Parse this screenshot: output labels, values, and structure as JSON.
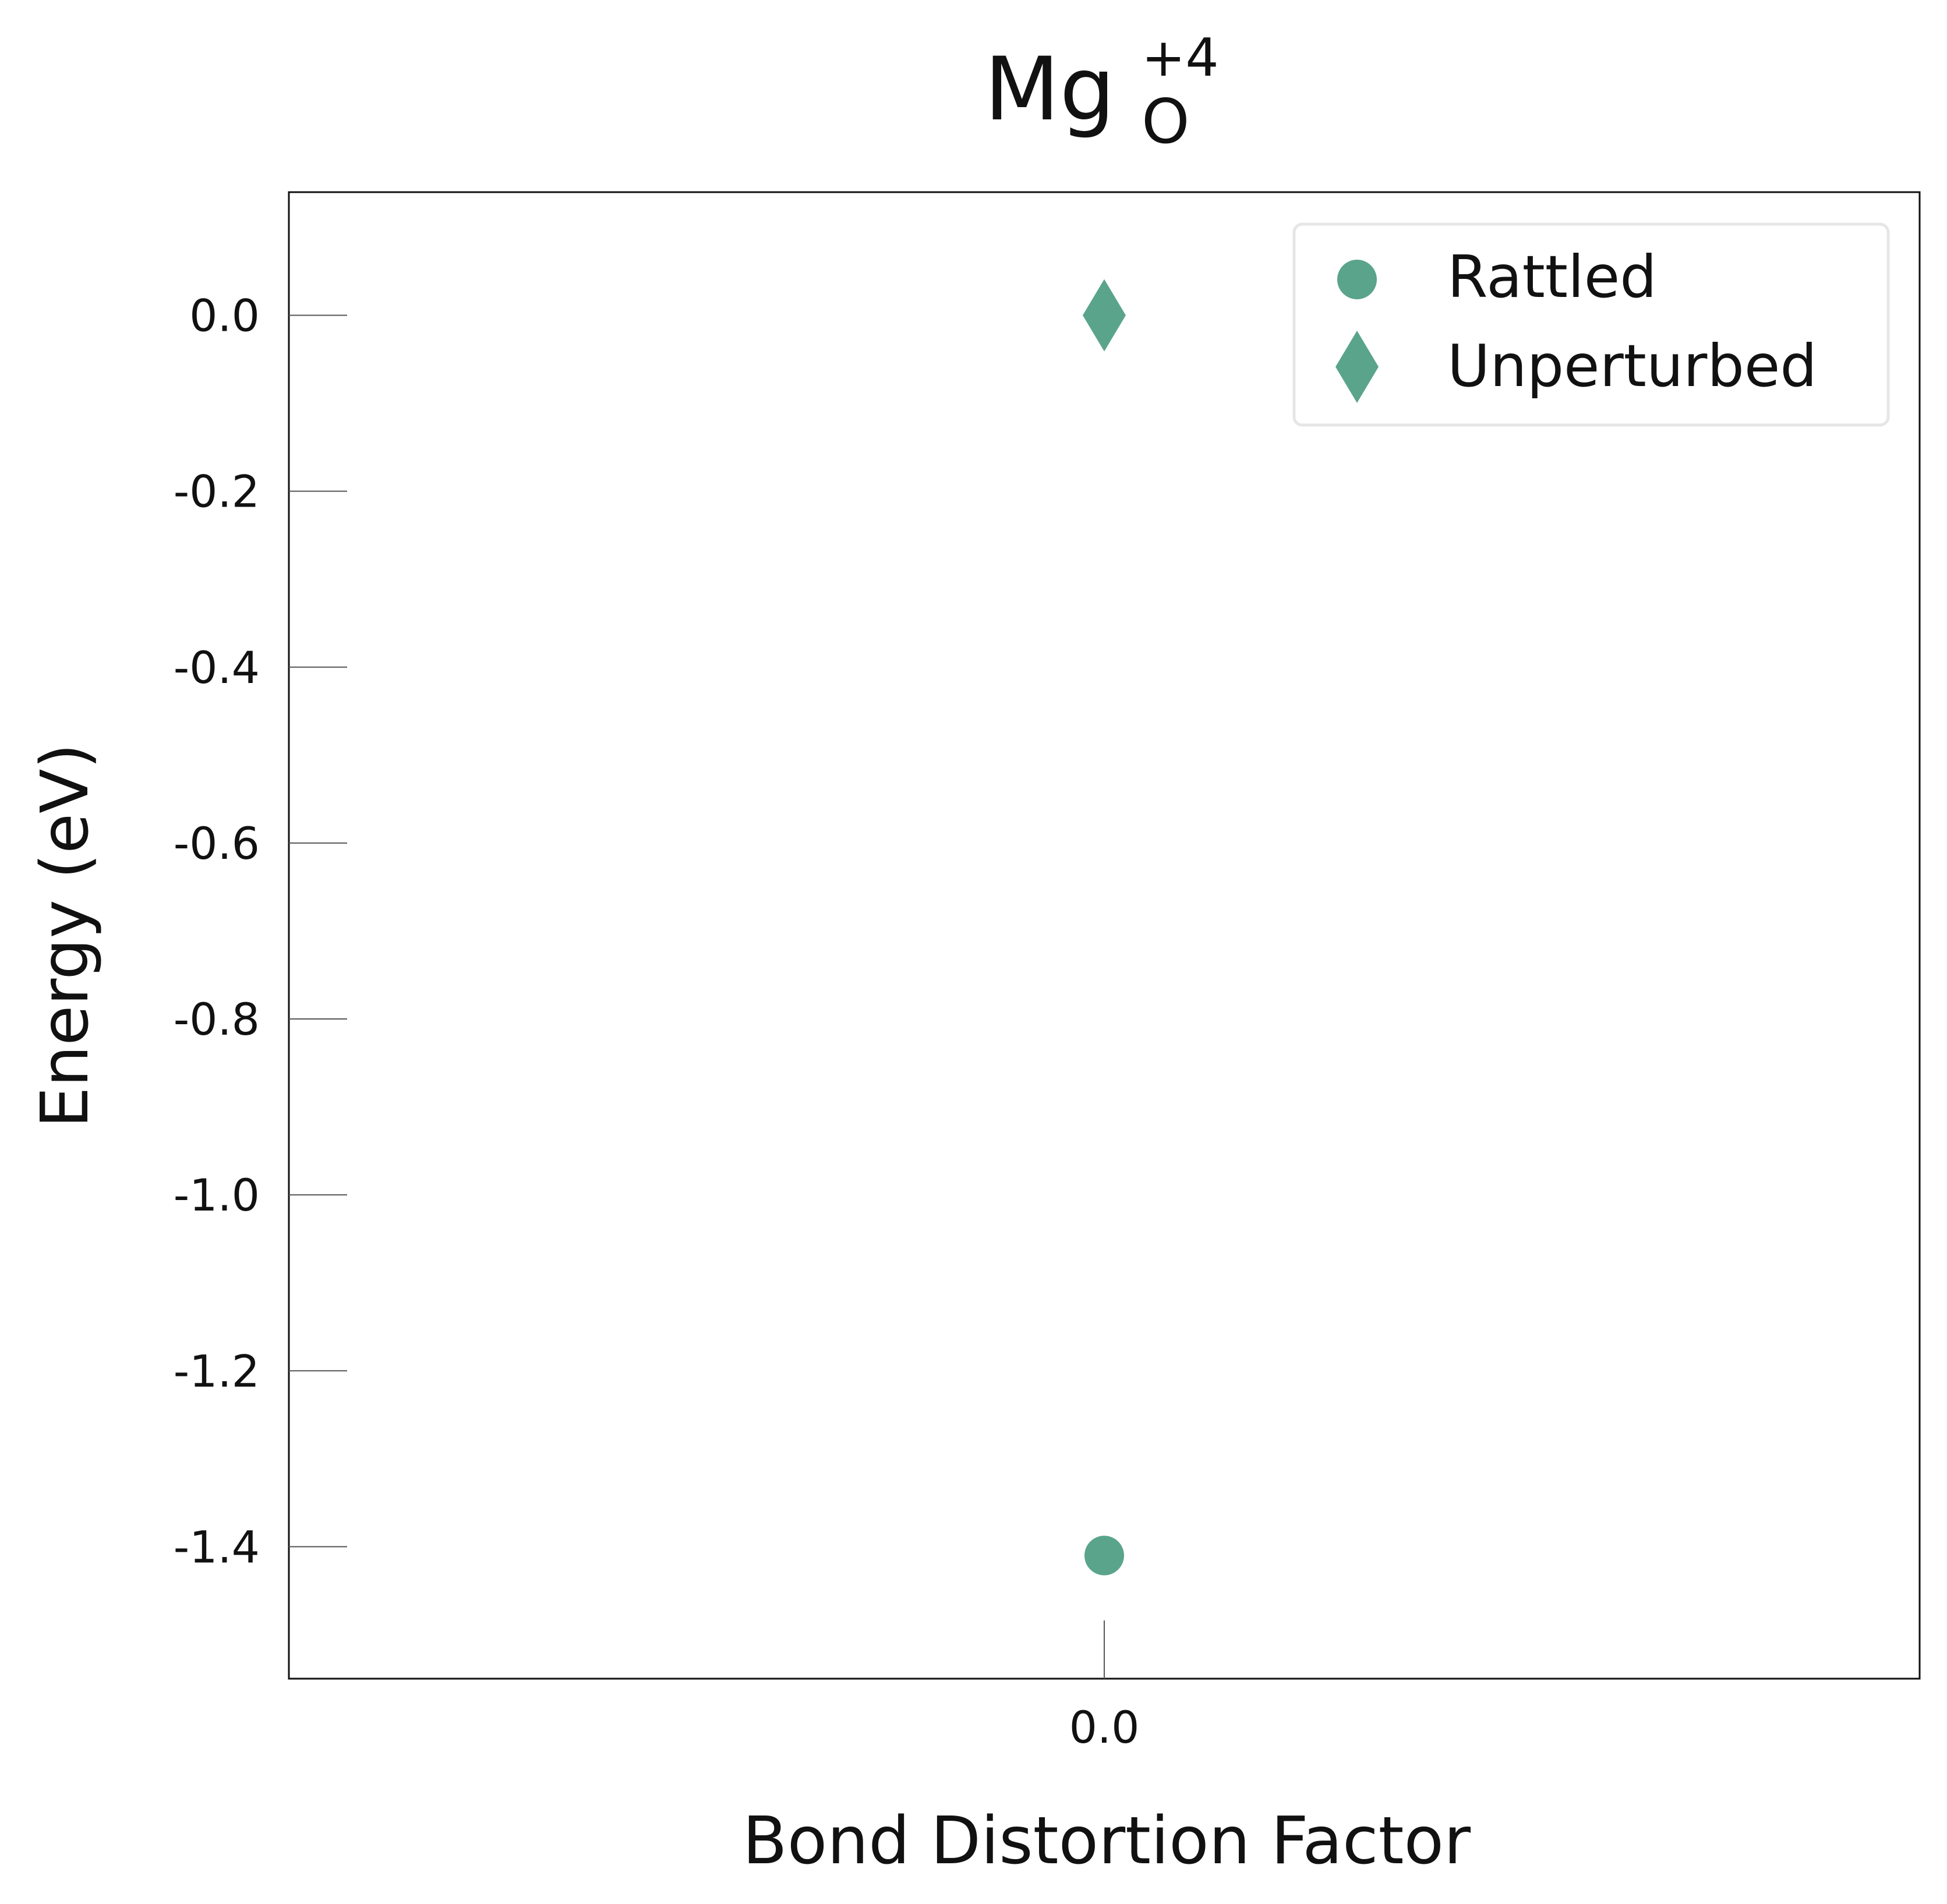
{
  "chart_data": {
    "type": "scatter",
    "title": {
      "base": "Mg",
      "subscript": "O",
      "superscript": "+4"
    },
    "xlabel": "Bond Distortion Factor",
    "ylabel": "Energy (eV)",
    "x_ticks": [
      "0.0"
    ],
    "y_ticks": [
      0.0,
      -0.2,
      -0.4,
      -0.6,
      -0.8,
      -1.0,
      -1.2,
      -1.4
    ],
    "y_tick_labels": [
      "0.0",
      "-0.2",
      "-0.4",
      "-0.6",
      "-0.8",
      "-1.0",
      "-1.2",
      "-1.4"
    ],
    "xlim": [
      -1,
      1
    ],
    "ylim": [
      -1.55,
      0.14
    ],
    "grid": false,
    "legend_position": "top-right",
    "series": [
      {
        "name": "Rattled",
        "marker": "circle",
        "color": "#5aa48c",
        "x": [
          0.0
        ],
        "y": [
          -1.41
        ]
      },
      {
        "name": "Unperturbed",
        "marker": "diamond",
        "color": "#5aa48c",
        "x": [
          0.0
        ],
        "y": [
          0.0
        ]
      }
    ]
  }
}
